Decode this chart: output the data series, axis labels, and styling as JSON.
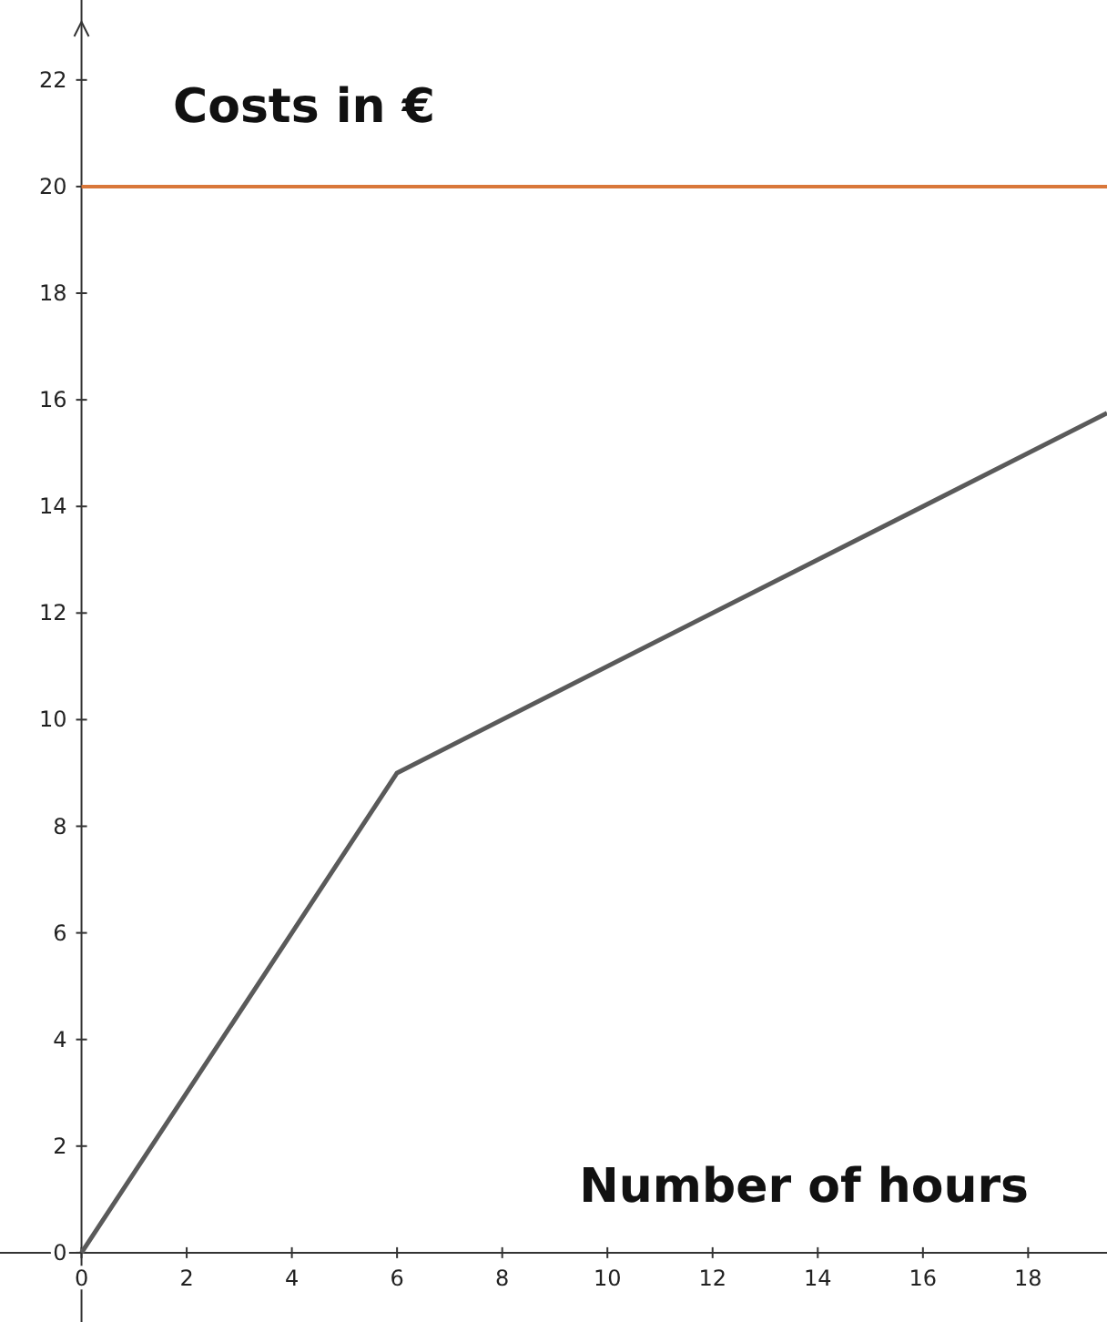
{
  "chart_data": {
    "type": "line",
    "title": "Costs in €",
    "xlabel": "Number of hours",
    "x": [
      0,
      6,
      19.5
    ],
    "series": [
      {
        "color": "#5a5a5a",
        "values": [
          0,
          9,
          15.75
        ]
      }
    ],
    "xlim": [
      -1.55,
      19.5
    ],
    "ylim": [
      -1.3,
      23.5
    ],
    "xticks": [
      0,
      2,
      4,
      6,
      8,
      10,
      12,
      14,
      16,
      18
    ],
    "yticks": [
      0,
      2,
      4,
      6,
      8,
      10,
      12,
      14,
      16,
      18,
      20,
      22
    ],
    "ref_lines": [
      {
        "axis": "y",
        "value": 20,
        "color": "#d9773a"
      }
    ],
    "grid": false,
    "marker": "none",
    "line_style": "solid"
  }
}
